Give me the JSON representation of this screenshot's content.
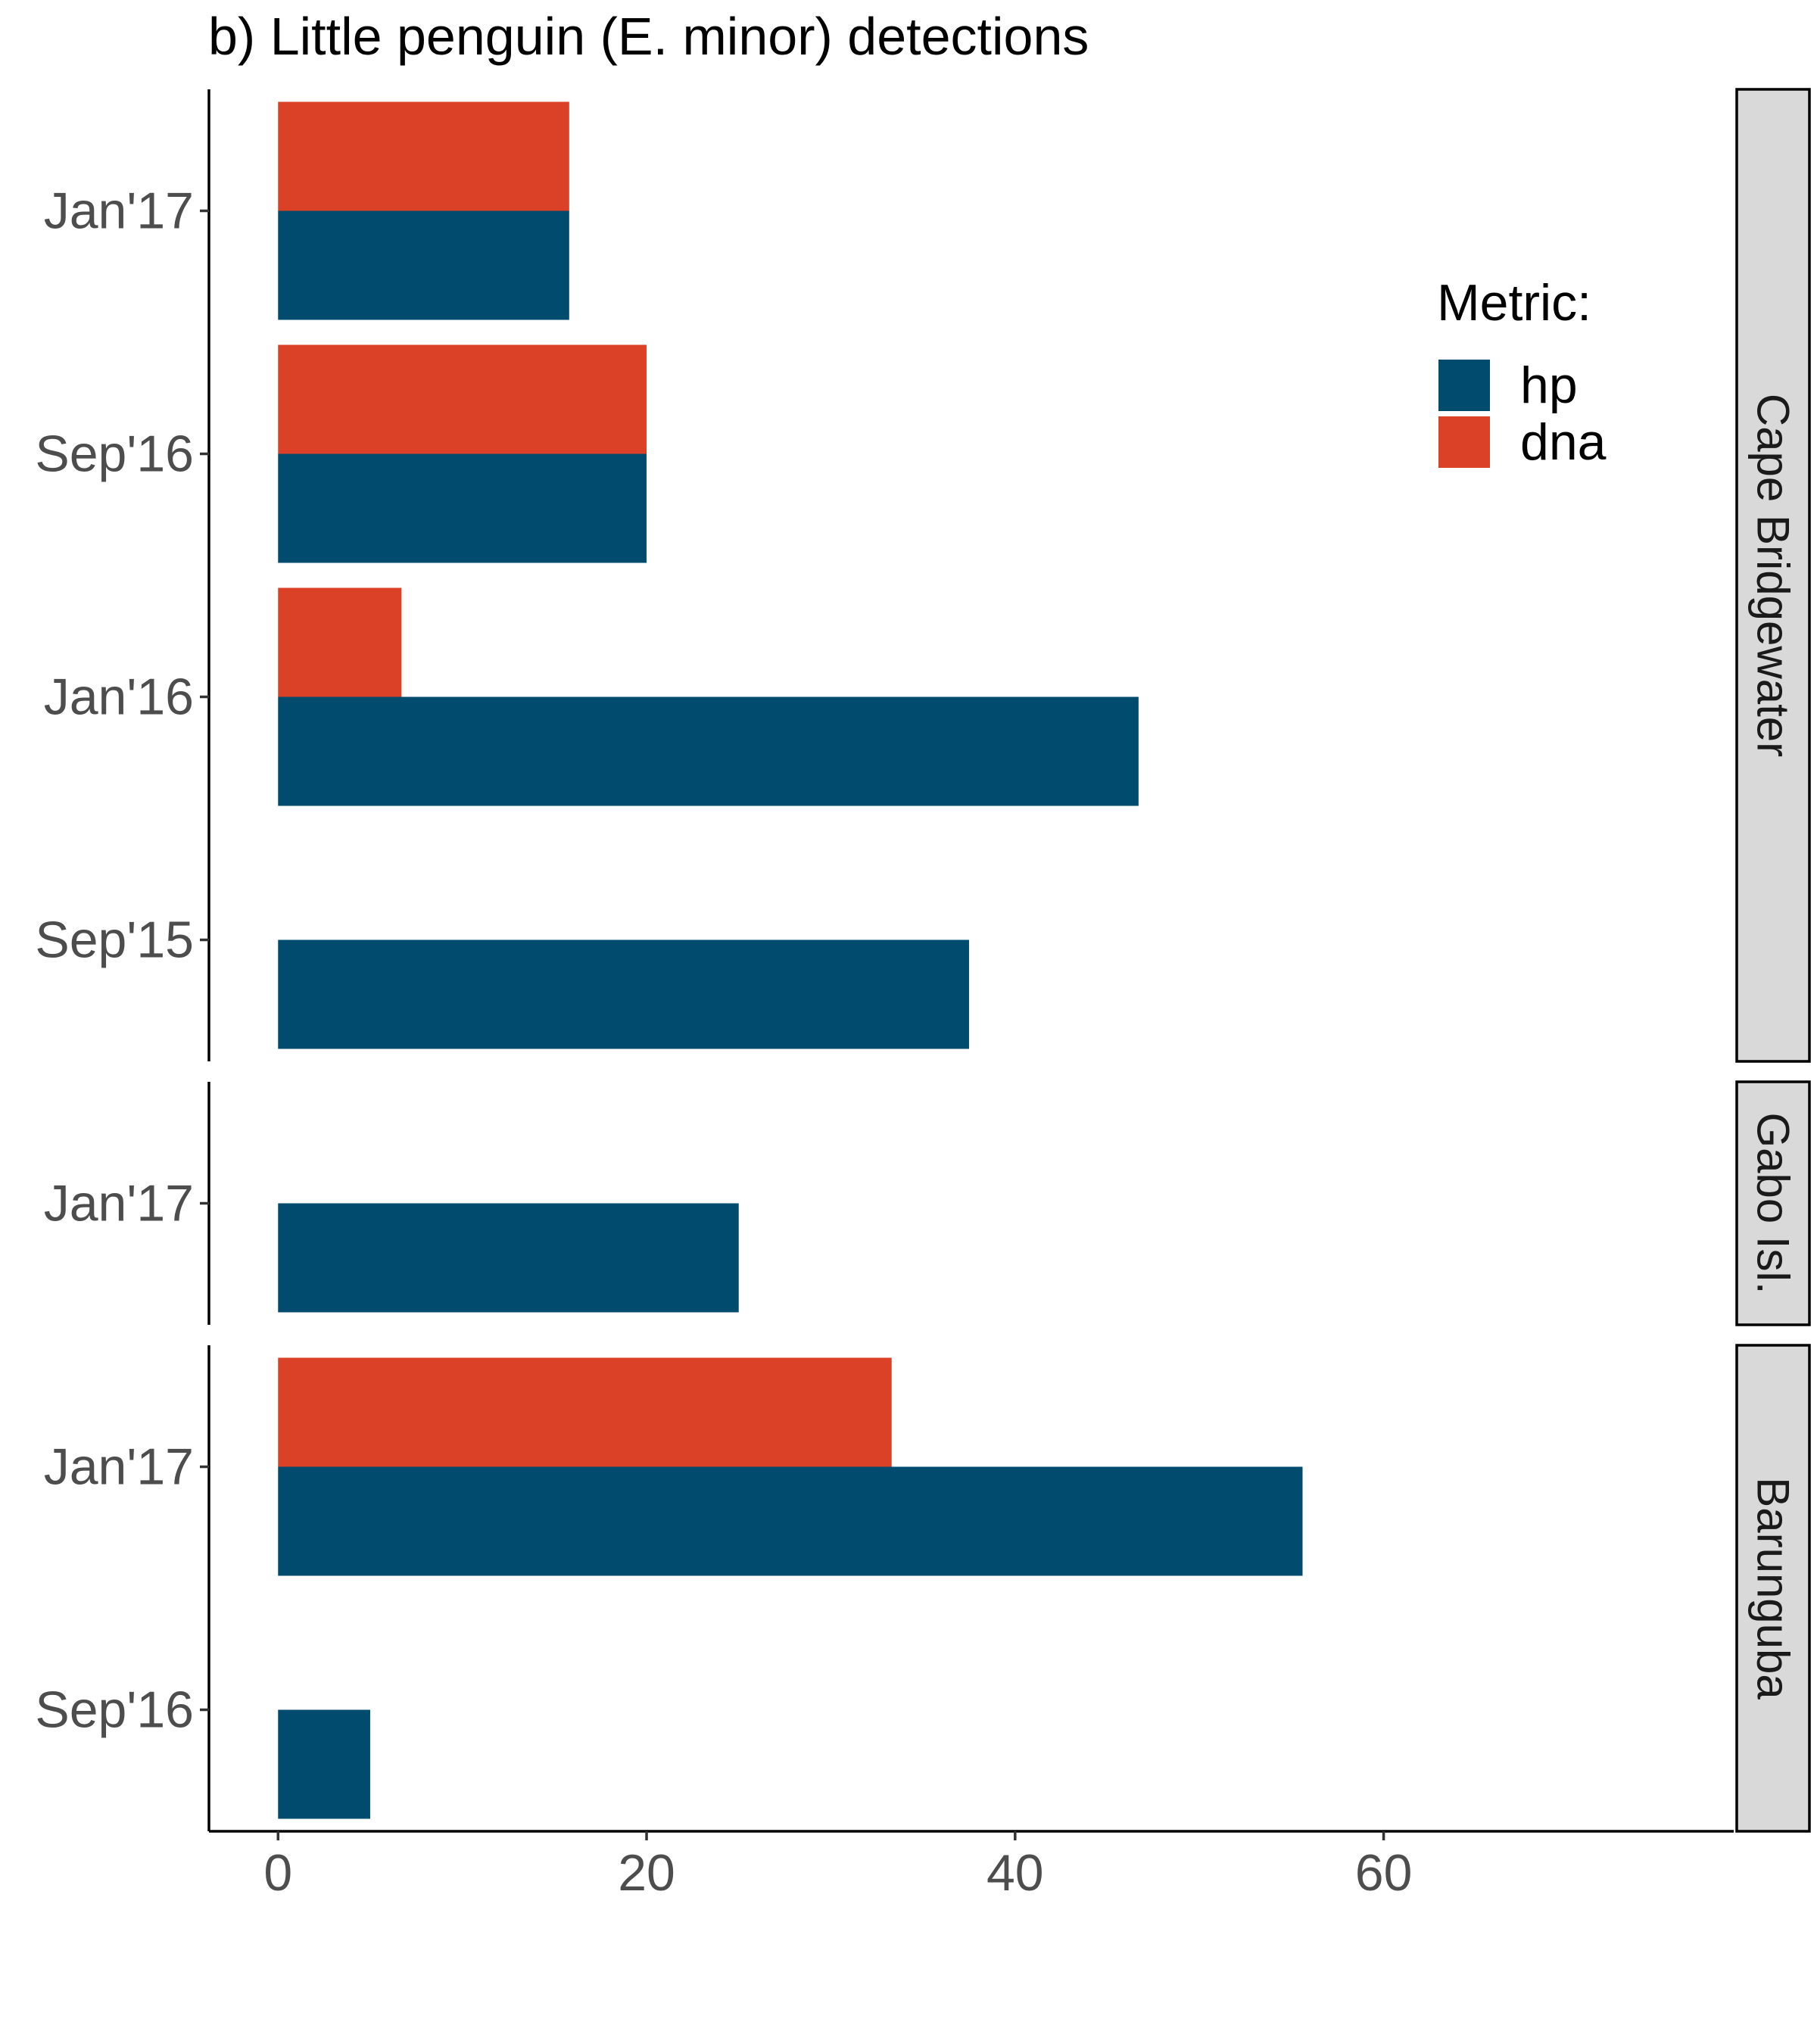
{
  "chart_data": {
    "type": "bar",
    "orientation": "horizontal",
    "title": "b) Little penguin (E. minor) detections",
    "xlabel": "",
    "ylabel": "",
    "xlim": [
      -3.75,
      79
    ],
    "x_ticks": [
      0,
      20,
      40,
      60
    ],
    "grid": false,
    "colors": {
      "hp": "#004b6e",
      "dna": "#db4126"
    },
    "legend": {
      "title": "Metric:",
      "placement": "top-right",
      "entries": [
        {
          "key": "hp",
          "label": "hp"
        },
        {
          "key": "dna",
          "label": "dna"
        }
      ]
    },
    "panels": [
      {
        "label": "Cape Bridgewater",
        "categories": [
          {
            "label": "Jan'17",
            "hp": 15.8,
            "dna": 15.8
          },
          {
            "label": "Sep'16",
            "hp": 20.0,
            "dna": 20.0
          },
          {
            "label": "Jan'16",
            "hp": 46.7,
            "dna": 6.7
          },
          {
            "label": "Sep'15",
            "hp": 37.5,
            "dna": null
          }
        ]
      },
      {
        "label": "Gabo Isl.",
        "categories": [
          {
            "label": "Jan'17",
            "hp": 25.0,
            "dna": null
          }
        ]
      },
      {
        "label": "Barunguba",
        "categories": [
          {
            "label": "Jan'17",
            "hp": 55.6,
            "dna": 33.3
          },
          {
            "label": "Sep'16",
            "hp": 5.0,
            "dna": null
          }
        ]
      }
    ]
  }
}
